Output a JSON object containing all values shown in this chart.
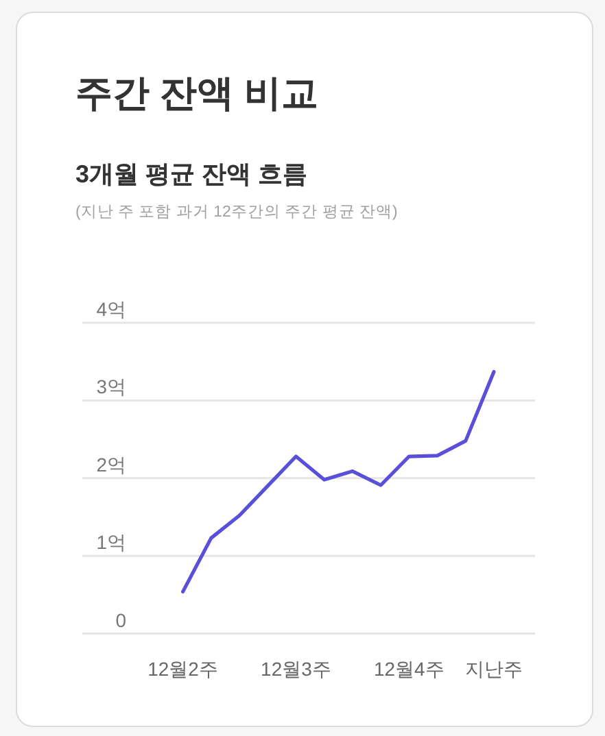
{
  "chart_data": {
    "type": "line",
    "title": "주간 잔액 비교",
    "subtitle": "3개월 평균 잔액 흐름",
    "annotations": [
      "(지난 주 포함 과거 12주간의 주간 평균 잔액)"
    ],
    "categories": [
      "12월2주",
      null,
      null,
      null,
      "12월3주",
      null,
      null,
      null,
      "12월4주",
      null,
      null,
      "지난주"
    ],
    "series": [
      {
        "color": "#5a4fd8",
        "values": [
          0.54,
          1.23,
          1.52,
          1.9,
          2.28,
          1.98,
          2.09,
          1.91,
          2.28,
          2.29,
          2.48,
          3.37
        ]
      }
    ],
    "ylim": [
      0,
      4
    ],
    "yticks": [
      0,
      {
        "value": 1,
        "label": "1억"
      },
      {
        "value": 2,
        "label": "2억"
      },
      {
        "value": 3,
        "label": "3억"
      },
      {
        "value": 4,
        "label": "4억"
      }
    ],
    "grid": "y"
  }
}
